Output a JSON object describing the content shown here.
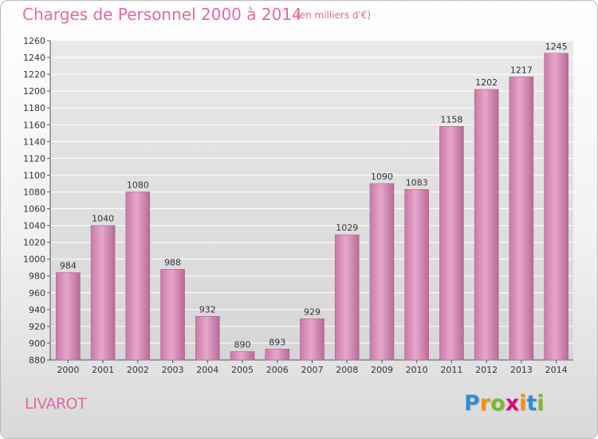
{
  "header": {
    "title": "Charges de Personnel 2000 à 2014",
    "subtitle": "(en milliers d'€)"
  },
  "footer": {
    "town": "LIVAROT",
    "logo_letters": [
      "P",
      "r",
      "o",
      "x",
      "i",
      "t",
      "i"
    ],
    "logo_colors": [
      "#2d8ed6",
      "#f39200",
      "#78b928",
      "#e2007a",
      "#f39200",
      "#2d8ed6",
      "#78b928"
    ]
  },
  "chart_data": {
    "type": "bar",
    "categories": [
      "2000",
      "2001",
      "2002",
      "2003",
      "2004",
      "2005",
      "2006",
      "2007",
      "2008",
      "2009",
      "2010",
      "2011",
      "2012",
      "2013",
      "2014"
    ],
    "values": [
      984,
      1040,
      1080,
      988,
      932,
      890,
      893,
      929,
      1029,
      1090,
      1083,
      1158,
      1202,
      1217,
      1245
    ],
    "data_labels": [
      "984",
      "1040",
      "1080",
      "988",
      "932",
      "890",
      "893",
      "929",
      "1029",
      "1090",
      "1083",
      "1158",
      "1202",
      "1217",
      "1245"
    ],
    "y_ticks": [
      880,
      900,
      920,
      940,
      960,
      980,
      1000,
      1020,
      1040,
      1060,
      1080,
      1100,
      1120,
      1140,
      1160,
      1180,
      1200,
      1220,
      1240,
      1260
    ],
    "ylim": [
      880,
      1260
    ],
    "grid": true,
    "legend": "none",
    "bar_color": "#d989b5"
  }
}
